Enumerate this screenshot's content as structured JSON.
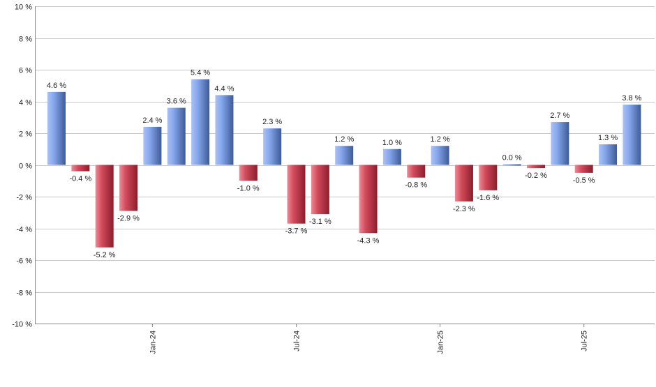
{
  "chart_data": {
    "type": "bar",
    "title": "",
    "xlabel": "",
    "ylabel": "",
    "ylim": [
      -10,
      10
    ],
    "y_ticks": [
      10,
      8,
      6,
      4,
      2,
      0,
      -2,
      -4,
      -6,
      -8,
      -10
    ],
    "y_tick_labels": [
      "10 %",
      "8 %",
      "6 %",
      "4 %",
      "2 %",
      "0 %",
      "-2 %",
      "-4 %",
      "-6 %",
      "-8 %",
      "-10 %"
    ],
    "grid": true,
    "bar_count": 25,
    "values": [
      4.6,
      -0.4,
      -5.2,
      -2.9,
      2.4,
      3.6,
      5.4,
      4.4,
      -1.0,
      2.3,
      -3.7,
      -3.1,
      1.2,
      -4.3,
      1.0,
      -0.8,
      1.2,
      -2.3,
      -1.6,
      0.0,
      -0.2,
      2.7,
      -0.5,
      1.3,
      3.8
    ],
    "value_labels": [
      "4.6 %",
      "-0.4 %",
      "-5.2 %",
      "-2.9 %",
      "2.4 %",
      "3.6 %",
      "5.4 %",
      "4.4 %",
      "-1.0 %",
      "2.3 %",
      "-3.7 %",
      "-3.1 %",
      "1.2 %",
      "-4.3 %",
      "1.0 %",
      "-0.8 %",
      "1.2 %",
      "-2.3 %",
      "-1.6 %",
      "0.0 %",
      "-0.2 %",
      "2.7 %",
      "-0.5 %",
      "1.3 %",
      "3.8 %"
    ],
    "x_ticks": [
      {
        "label": "Jan-24",
        "index": 4
      },
      {
        "label": "Jul-24",
        "index": 10
      },
      {
        "label": "Jan-25",
        "index": 16
      },
      {
        "label": "Jul-25",
        "index": 22
      }
    ],
    "colors": {
      "positive": "#7f9fe6",
      "positive_dark": "#3a5a9a",
      "negative": "#d8505e",
      "negative_dark": "#8a1c2a",
      "grid": "#c8c8c8"
    }
  }
}
